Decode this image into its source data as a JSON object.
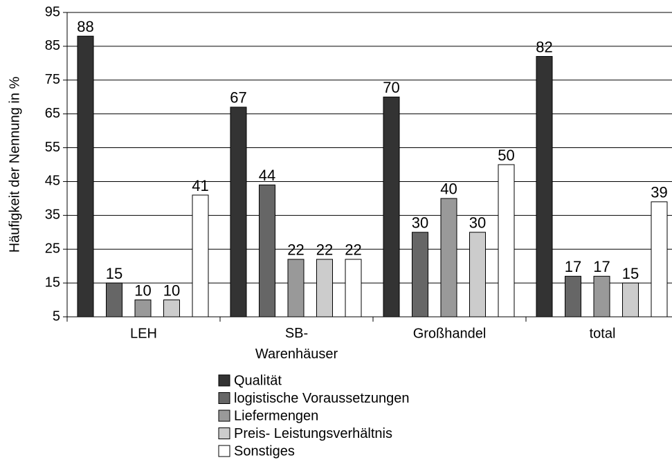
{
  "chart_data": {
    "type": "bar",
    "y_label": "Häufigkeit der Nennung in %",
    "categories": [
      "LEH",
      "SB-\nWarenhäuser",
      "Großhandel",
      "total"
    ],
    "series": [
      {
        "name": "Qualität",
        "color": "#333333",
        "values": [
          88,
          67,
          70,
          82
        ]
      },
      {
        "name": "logistische Voraussetzungen",
        "color": "#666666",
        "values": [
          15,
          44,
          30,
          17
        ]
      },
      {
        "name": "Liefermengen",
        "color": "#999999",
        "values": [
          10,
          22,
          40,
          17
        ]
      },
      {
        "name": "Preis- Leistungsverhältnis",
        "color": "#cccccc",
        "values": [
          10,
          22,
          30,
          15
        ]
      },
      {
        "name": "Sonstiges",
        "color": "#ffffff",
        "values": [
          41,
          22,
          50,
          39
        ]
      }
    ],
    "ylim": [
      5,
      95
    ],
    "yticks": [
      5,
      15,
      25,
      35,
      45,
      55,
      65,
      75,
      85,
      95
    ],
    "grid": true,
    "legend": "bottom"
  }
}
